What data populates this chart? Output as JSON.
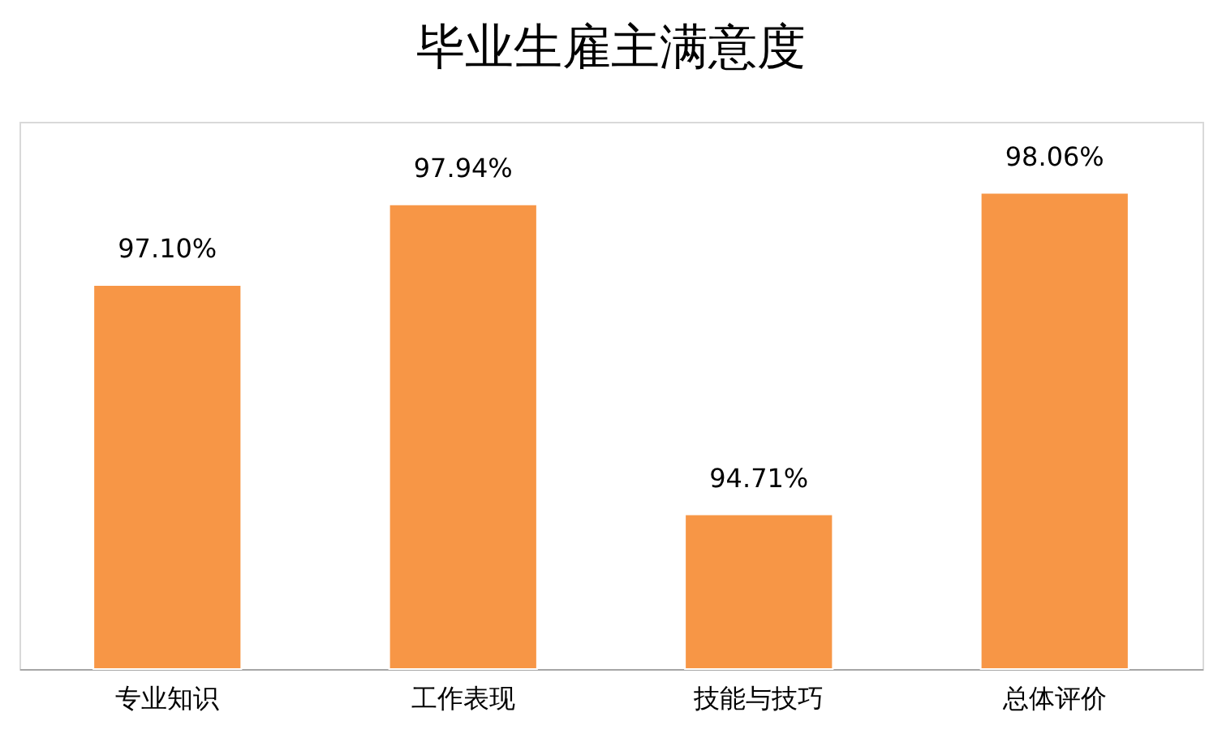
{
  "chart_data": {
    "type": "bar",
    "title": "毕业生雇主满意度",
    "categories": [
      "专业知识",
      "工作表现",
      "技能与技巧",
      "总体评价"
    ],
    "values": [
      97.1,
      97.94,
      94.71,
      98.06
    ],
    "value_labels": [
      "97.10%",
      "97.94%",
      "94.71%",
      "98.06%"
    ],
    "color": "#f79646",
    "ylim": [
      93.1,
      98.8
    ],
    "tick_labels": "x",
    "grid": false
  }
}
